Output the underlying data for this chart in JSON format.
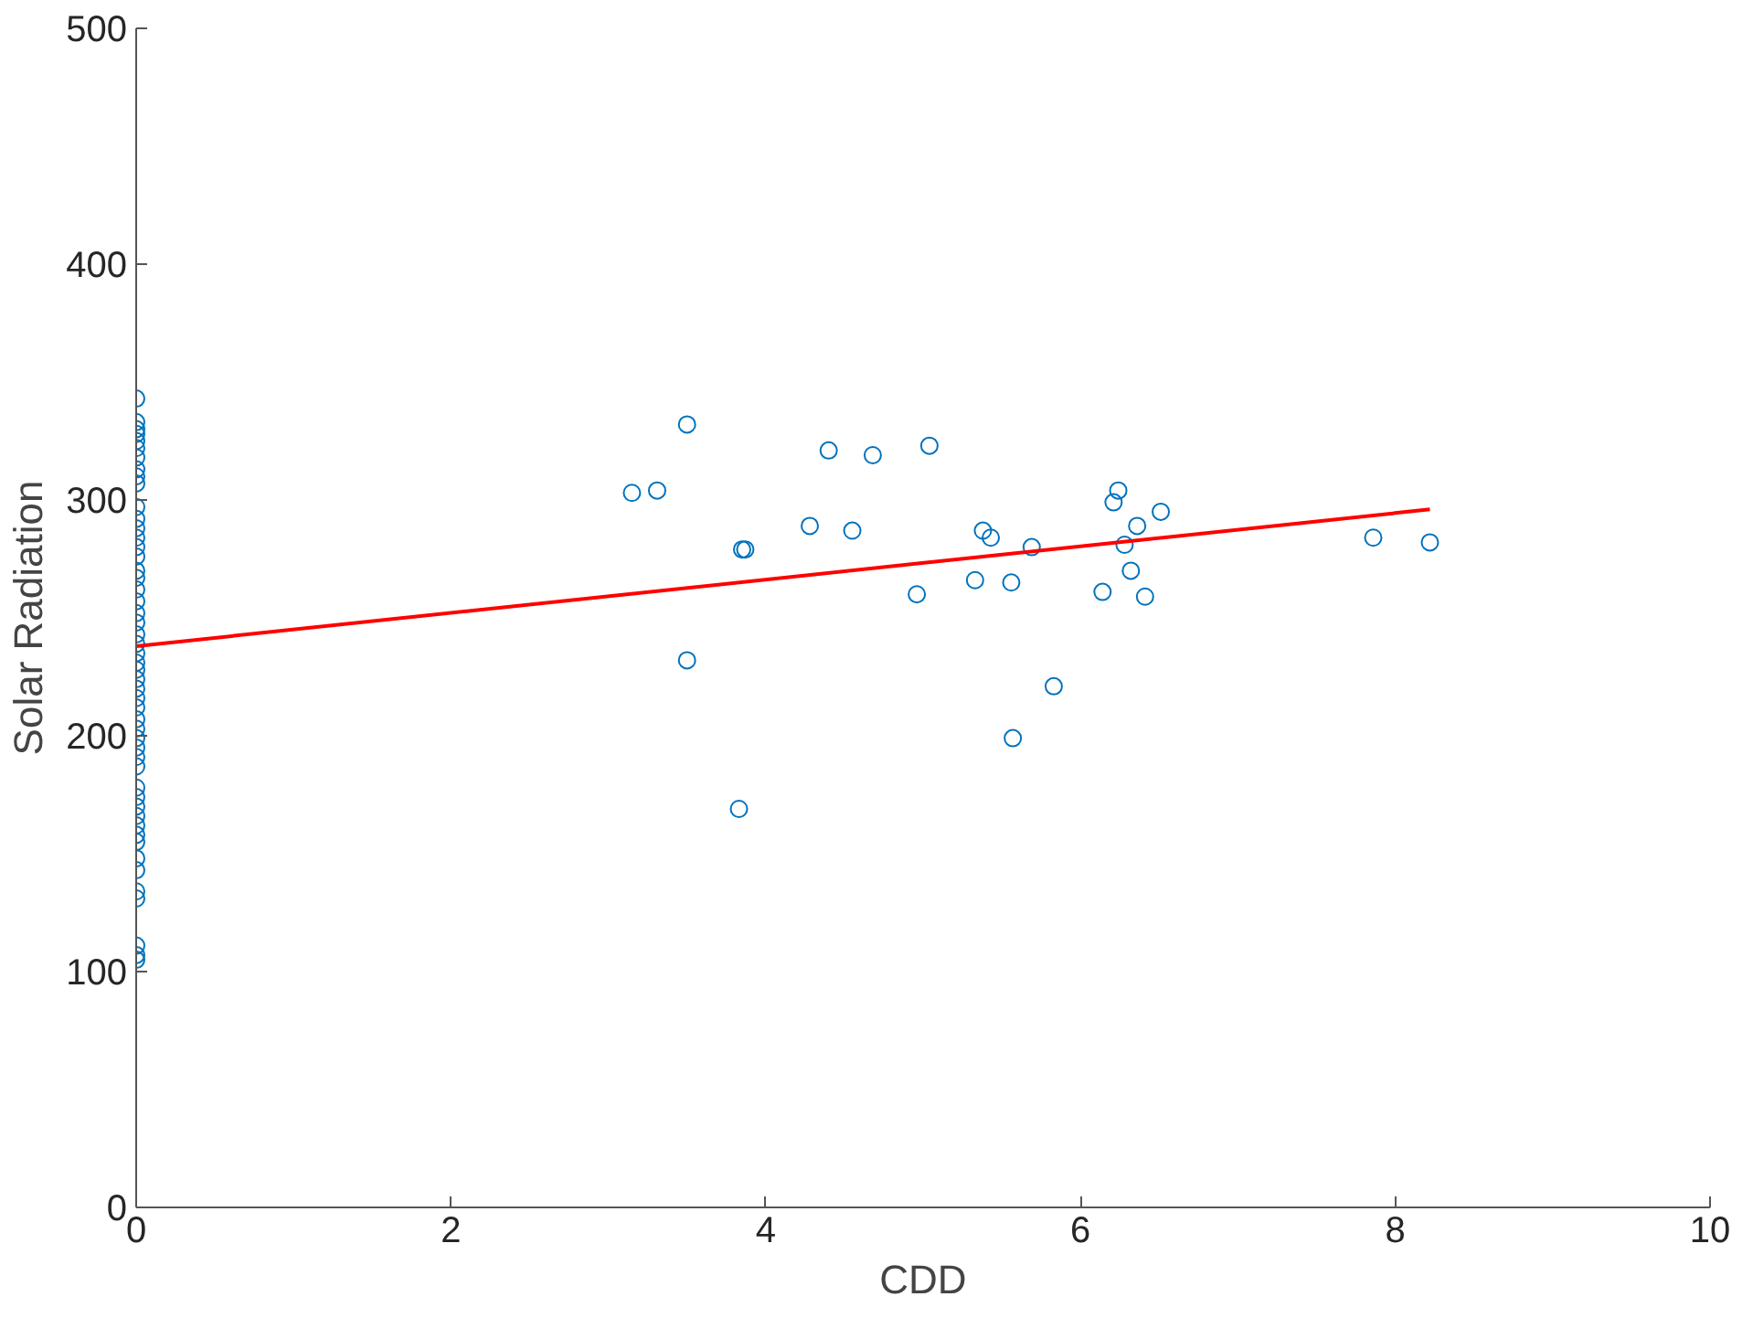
{
  "chart_data": {
    "type": "scatter",
    "xlabel": "CDD",
    "ylabel": "Solar Radiation",
    "xlim": [
      0,
      10
    ],
    "ylim": [
      0,
      500
    ],
    "xticks": [
      0,
      2,
      4,
      6,
      8,
      10
    ],
    "yticks": [
      0,
      100,
      200,
      300,
      400,
      500
    ],
    "grid": false,
    "series": [
      {
        "marker": "circle",
        "color": "#0072bd",
        "x": [
          0,
          0,
          0,
          0,
          0,
          0,
          0,
          0,
          0,
          0,
          0,
          0,
          0,
          0,
          0,
          0,
          0,
          0,
          0,
          0,
          0,
          0,
          0,
          0,
          0,
          0,
          0,
          0,
          0,
          0,
          0,
          0,
          0,
          0,
          0,
          0,
          0,
          0,
          0,
          0,
          0,
          0,
          0,
          0,
          0,
          0,
          0,
          0,
          0,
          0,
          0,
          3.15,
          3.31,
          3.5,
          3.5,
          3.83,
          3.85,
          3.87,
          4.28,
          4.4,
          4.55,
          4.68,
          4.96,
          5.04,
          5.33,
          5.38,
          5.43,
          5.56,
          5.57,
          5.69,
          5.83,
          6.14,
          6.21,
          6.24,
          6.28,
          6.32,
          6.36,
          6.41,
          6.51,
          7.86,
          8.22
        ],
        "values": [
          343,
          333,
          330,
          328,
          325,
          322,
          318,
          313,
          310,
          307,
          297,
          292,
          288,
          284,
          280,
          276,
          270,
          267,
          262,
          257,
          252,
          248,
          243,
          239,
          235,
          231,
          228,
          224,
          220,
          216,
          212,
          207,
          203,
          199,
          195,
          191,
          187,
          178,
          174,
          170,
          166,
          162,
          158,
          155,
          148,
          143,
          134,
          131,
          111,
          107,
          105,
          303,
          304,
          332,
          232,
          169,
          279,
          279,
          289,
          321,
          287,
          319,
          260,
          323,
          266,
          287,
          284,
          265,
          199,
          280,
          221,
          261,
          299,
          304,
          281,
          270,
          289,
          259,
          295,
          284,
          282
        ]
      },
      {
        "type": "line",
        "color": "#ff0000",
        "x": [
          0,
          8.22
        ],
        "values": [
          238,
          296
        ]
      }
    ]
  }
}
